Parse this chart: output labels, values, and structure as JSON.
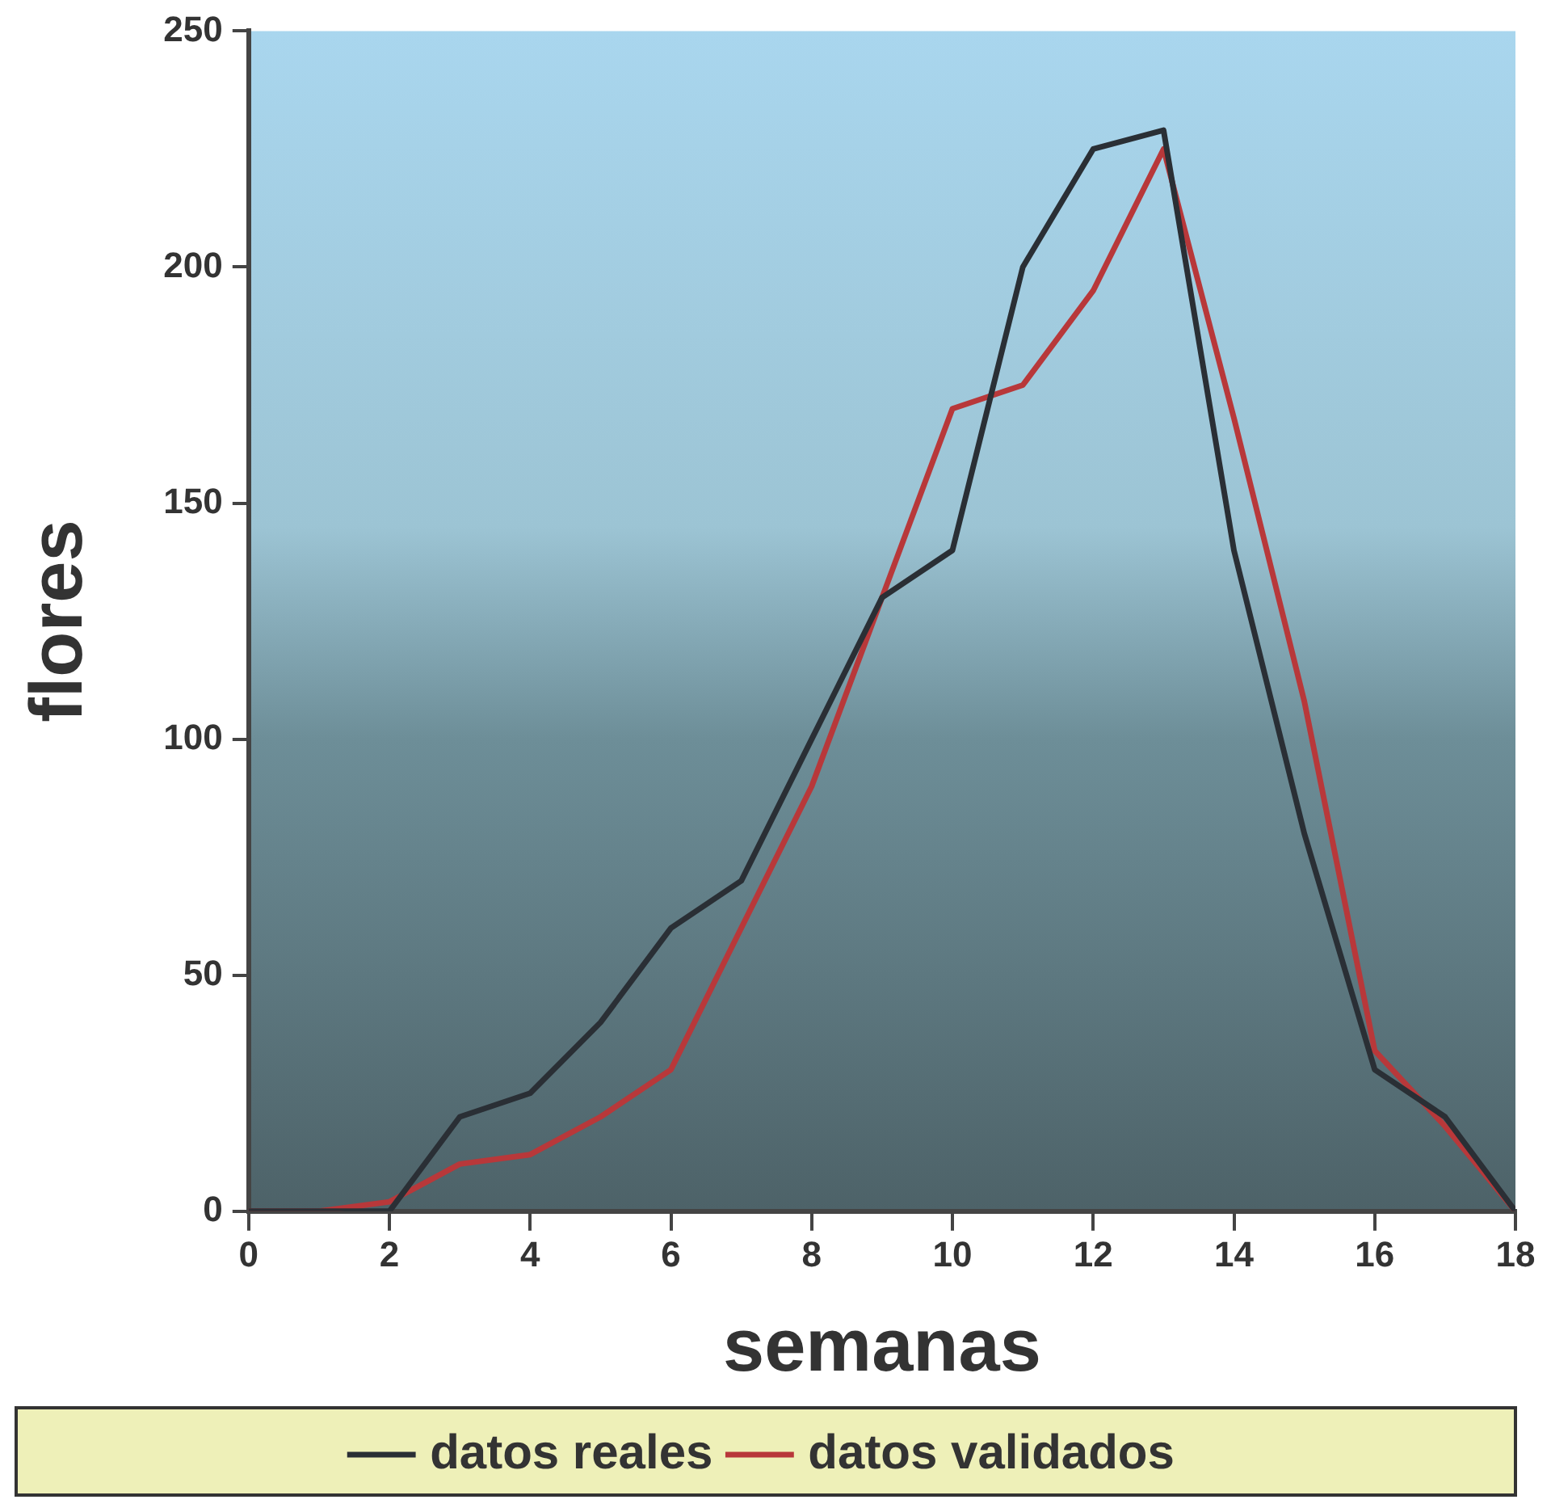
{
  "chart_data": {
    "type": "line",
    "xlabel": "semanas",
    "ylabel": "flores",
    "x": [
      0,
      1,
      2,
      3,
      4,
      5,
      6,
      7,
      8,
      9,
      10,
      11,
      12,
      13,
      14,
      15,
      16,
      17,
      18
    ],
    "series": [
      {
        "name": "datos reales",
        "color": "#2a2f35",
        "values": [
          0,
          0,
          0,
          20,
          25,
          40,
          60,
          70,
          100,
          130,
          140,
          200,
          225,
          229,
          140,
          80,
          30,
          20,
          0
        ]
      },
      {
        "name": "datos validados",
        "color": "#b8383a",
        "values": [
          0,
          0,
          2,
          10,
          12,
          20,
          30,
          60,
          90,
          130,
          170,
          175,
          195,
          225,
          168,
          108,
          34,
          18,
          0
        ]
      }
    ],
    "xlim": [
      0,
      18
    ],
    "xticks": [
      0,
      2,
      4,
      6,
      8,
      10,
      12,
      14,
      16,
      18
    ],
    "ylim": [
      0,
      250
    ],
    "yticks": [
      0,
      50,
      100,
      150,
      200,
      250
    ],
    "grid": false,
    "legend": "bottom",
    "marker": "none",
    "line_style": "solid"
  }
}
